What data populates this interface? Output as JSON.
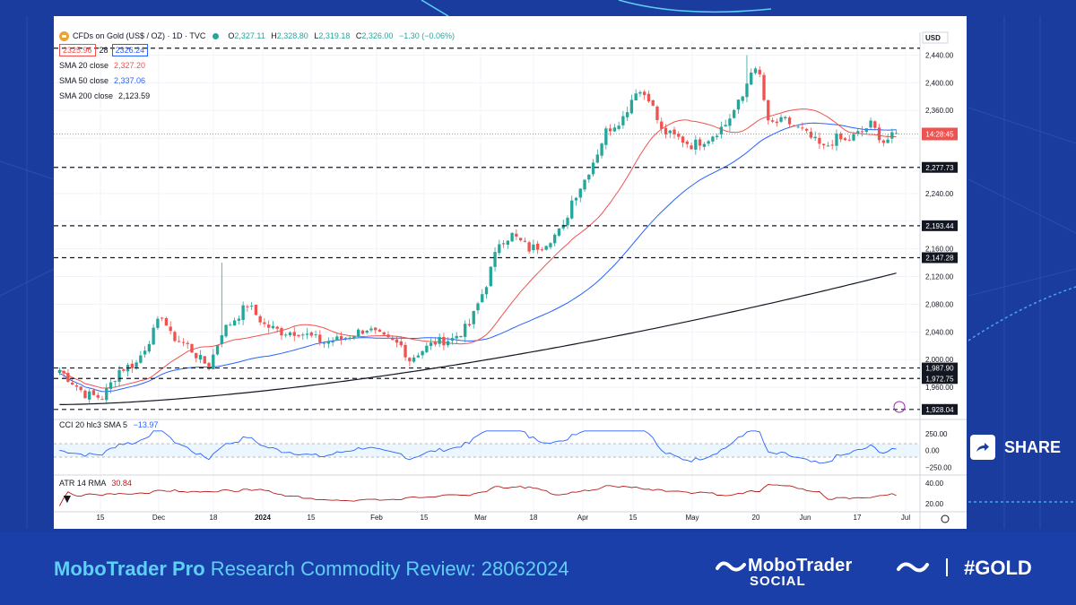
{
  "symbol": {
    "name": "CFDs on Gold (US$ / OZ) · 1D · TVC",
    "ohlc": [
      {
        "k": "O",
        "v": "2,327.11"
      },
      {
        "k": "H",
        "v": "2,328.80"
      },
      {
        "k": "L",
        "v": "2,319.18"
      },
      {
        "k": "C",
        "v": "2,326.00"
      }
    ],
    "change": "−1.30 (−0.06%)",
    "bid": "2325.96",
    "spread": "28",
    "ask": "2326.24",
    "currency": "USD"
  },
  "indicators": {
    "sma20": {
      "label": "SMA 20 close",
      "value": "2,327.20",
      "color": "#ef5350"
    },
    "sma50": {
      "label": "SMA 50 close",
      "value": "2,337.06",
      "color": "#2962ff"
    },
    "sma200": {
      "label": "SMA 200 close",
      "value": "2,123.59",
      "color": "#131722"
    },
    "cci": {
      "label": "CCI 20 hlc3 SMA 5",
      "value": "−13.97",
      "color": "#2962ff"
    },
    "atr": {
      "label": "ATR 14 RMA",
      "value": "30.84",
      "color": "#b71c1c"
    }
  },
  "chart_data": {
    "type": "candlestick",
    "y_axis": {
      "min": 1920,
      "max": 2460,
      "ticks": [
        "2,440.00",
        "2,400.00",
        "2,360.00",
        "2,240.00",
        "2,160.00",
        "2,120.00",
        "2,080.00",
        "2,040.00",
        "2,000.00",
        "1,960.00"
      ]
    },
    "x_ticks": [
      "15",
      "Dec",
      "18",
      "2024",
      "15",
      "Feb",
      "15",
      "Mar",
      "18",
      "Apr",
      "15",
      "May",
      "20",
      "Jun",
      "17",
      "Jul"
    ],
    "countdown_label": "14:28:45",
    "last_price": 2326.0,
    "levels": [
      {
        "value": 2450.0,
        "label": ""
      },
      {
        "value": 2277.73,
        "label": "2,277.73"
      },
      {
        "value": 2193.44,
        "label": "2,193.44"
      },
      {
        "value": 2147.28,
        "label": "2,147.28"
      },
      {
        "value": 1987.9,
        "label": "1,987.90"
      },
      {
        "value": 1972.75,
        "label": "1,972.75"
      },
      {
        "value": 1928.04,
        "label": "1,928.04"
      }
    ],
    "waypoints": [
      [
        0,
        1985
      ],
      [
        6,
        1950
      ],
      [
        10,
        1945
      ],
      [
        14,
        1985
      ],
      [
        18,
        1995
      ],
      [
        22,
        2040
      ],
      [
        24,
        2065
      ],
      [
        26,
        2035
      ],
      [
        30,
        2020
      ],
      [
        33,
        2000
      ],
      [
        35,
        1990
      ],
      [
        38,
        2040
      ],
      [
        42,
        2065
      ],
      [
        44,
        2080
      ],
      [
        48,
        2050
      ],
      [
        52,
        2040
      ],
      [
        56,
        2040
      ],
      [
        62,
        2025
      ],
      [
        66,
        2030
      ],
      [
        72,
        2045
      ],
      [
        76,
        2030
      ],
      [
        80,
        2020
      ],
      [
        82,
        2000
      ],
      [
        84,
        2010
      ],
      [
        88,
        2025
      ],
      [
        92,
        2030
      ],
      [
        96,
        2050
      ],
      [
        100,
        2110
      ],
      [
        103,
        2170
      ],
      [
        106,
        2180
      ],
      [
        110,
        2160
      ],
      [
        113,
        2165
      ],
      [
        116,
        2180
      ],
      [
        118,
        2190
      ],
      [
        120,
        2230
      ],
      [
        123,
        2260
      ],
      [
        126,
        2300
      ],
      [
        128,
        2330
      ],
      [
        132,
        2350
      ],
      [
        135,
        2390
      ],
      [
        138,
        2380
      ],
      [
        141,
        2330
      ],
      [
        145,
        2320
      ],
      [
        148,
        2310
      ],
      [
        152,
        2320
      ],
      [
        156,
        2340
      ],
      [
        158,
        2360
      ],
      [
        160,
        2380
      ],
      [
        162,
        2420
      ],
      [
        164,
        2410
      ],
      [
        166,
        2340
      ],
      [
        170,
        2345
      ],
      [
        174,
        2330
      ],
      [
        176,
        2320
      ],
      [
        179,
        2305
      ],
      [
        182,
        2320
      ],
      [
        184,
        2315
      ],
      [
        188,
        2330
      ],
      [
        190,
        2340
      ],
      [
        193,
        2315
      ],
      [
        196,
        2325
      ]
    ],
    "cci_scale": {
      "min": -300,
      "max": 300,
      "ticks": [
        "250.00",
        "0.00",
        "−250.00"
      ],
      "band": [
        -100,
        100
      ]
    },
    "atr_scale": {
      "min": 15,
      "max": 45,
      "ticks": [
        "40.00",
        "20.00"
      ]
    }
  },
  "footer": {
    "title_bold": "MoboTrader Pro",
    "title_rest": " Research Commodity Review: 28062024",
    "brand": "MoboTrader",
    "brand_sub": "SOCIAL",
    "hashtag": "#GOLD"
  },
  "share_label": "SHARE",
  "colors": {
    "up": "#26a69a",
    "down": "#ef5350",
    "bg": "#1a3c9e",
    "accent": "#5fd0f5"
  }
}
